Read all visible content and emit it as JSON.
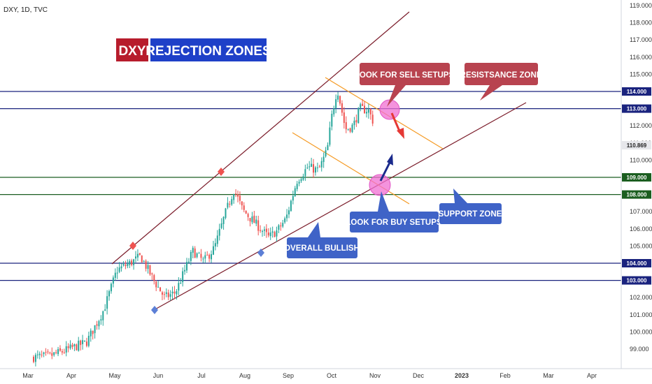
{
  "header": {
    "symbol": "DXY, 1D, TVC"
  },
  "title": {
    "part1": "DXY",
    "part2": "REJECTION ZONES"
  },
  "colors": {
    "bull": "#26a69a",
    "bear": "#ef5350",
    "resistance": "#1a237e",
    "support": "#1b5e20",
    "channel": "#7b1c2a",
    "flag": "#f59a23",
    "title_red": "#b71c2c",
    "title_blue": "#1e40c8",
    "callout_red": "#b8434f",
    "callout_blue": "#3f63c7",
    "highlight": "#f06fd2"
  },
  "chart_data": {
    "type": "candlestick",
    "ylim": [
      98.4,
      119.3
    ],
    "y_ticks": [
      "99.000",
      "100.000",
      "101.000",
      "102.000",
      "103.000",
      "104.000",
      "105.000",
      "106.000",
      "107.000",
      "108.000",
      "109.000",
      "110.000",
      "111.000",
      "112.000",
      "113.000",
      "114.000",
      "115.000",
      "116.000",
      "117.000",
      "118.000",
      "119.000"
    ],
    "x_ticks": [
      "Mar",
      "Apr",
      "May",
      "Jun",
      "Jul",
      "Aug",
      "Sep",
      "Oct",
      "Nov",
      "Dec",
      "2023",
      "Feb",
      "Mar",
      "Apr"
    ],
    "last_price": "110.869",
    "horizontal_levels": [
      {
        "value": 114.0,
        "label": "114.000",
        "kind": "resistance"
      },
      {
        "value": 113.0,
        "label": "113.000",
        "kind": "resistance"
      },
      {
        "value": 109.0,
        "label": "109.000",
        "kind": "support"
      },
      {
        "value": 108.0,
        "label": "108.000",
        "kind": "support"
      },
      {
        "value": 104.0,
        "label": "104.000",
        "kind": "resistance"
      },
      {
        "value": 103.0,
        "label": "103.000",
        "kind": "resistance"
      }
    ],
    "anchors": [
      {
        "month": 0.0,
        "value": 98.5
      },
      {
        "month": 0.5,
        "value": 98.6
      },
      {
        "month": 0.95,
        "value": 99.0
      },
      {
        "month": 1.35,
        "value": 99.4
      },
      {
        "month": 1.75,
        "value": 101.3
      },
      {
        "month": 2.05,
        "value": 103.6
      },
      {
        "month": 2.35,
        "value": 104.0
      },
      {
        "month": 2.6,
        "value": 104.4
      },
      {
        "month": 2.9,
        "value": 103.0
      },
      {
        "month": 3.15,
        "value": 102.0
      },
      {
        "month": 3.4,
        "value": 102.3
      },
      {
        "month": 3.55,
        "value": 103.2
      },
      {
        "month": 3.8,
        "value": 104.7
      },
      {
        "month": 4.05,
        "value": 104.1
      },
      {
        "month": 4.3,
        "value": 104.9
      },
      {
        "month": 4.55,
        "value": 106.9
      },
      {
        "month": 4.75,
        "value": 108.3
      },
      {
        "month": 4.95,
        "value": 107.1
      },
      {
        "month": 5.25,
        "value": 106.3
      },
      {
        "month": 5.55,
        "value": 105.5
      },
      {
        "month": 5.75,
        "value": 105.9
      },
      {
        "month": 5.95,
        "value": 106.6
      },
      {
        "month": 6.2,
        "value": 108.8
      },
      {
        "month": 6.45,
        "value": 109.6
      },
      {
        "month": 6.7,
        "value": 109.4
      },
      {
        "month": 6.9,
        "value": 110.6
      },
      {
        "month": 7.0,
        "value": 112.5
      },
      {
        "month": 7.13,
        "value": 114.2
      },
      {
        "month": 7.32,
        "value": 111.8
      },
      {
        "month": 7.5,
        "value": 112.0
      },
      {
        "month": 7.65,
        "value": 113.0
      },
      {
        "month": 7.85,
        "value": 112.9
      },
      {
        "month": 8.05,
        "value": 111.7
      },
      {
        "month": 8.22,
        "value": 110.1
      },
      {
        "month": 8.3,
        "value": 110.0
      },
      {
        "month": 8.38,
        "value": 110.87
      }
    ],
    "annotations": [
      {
        "text": "LOOK FOR SELL SETUPS",
        "color": "red"
      },
      {
        "text": "RESISTSANCE ZONE",
        "color": "red"
      },
      {
        "text": "LOOK FOR BUY SETUPS",
        "color": "blue"
      },
      {
        "text": "SUPPORT ZONE",
        "color": "blue"
      },
      {
        "text": "OVERALL BULLISH",
        "color": "blue"
      }
    ]
  }
}
